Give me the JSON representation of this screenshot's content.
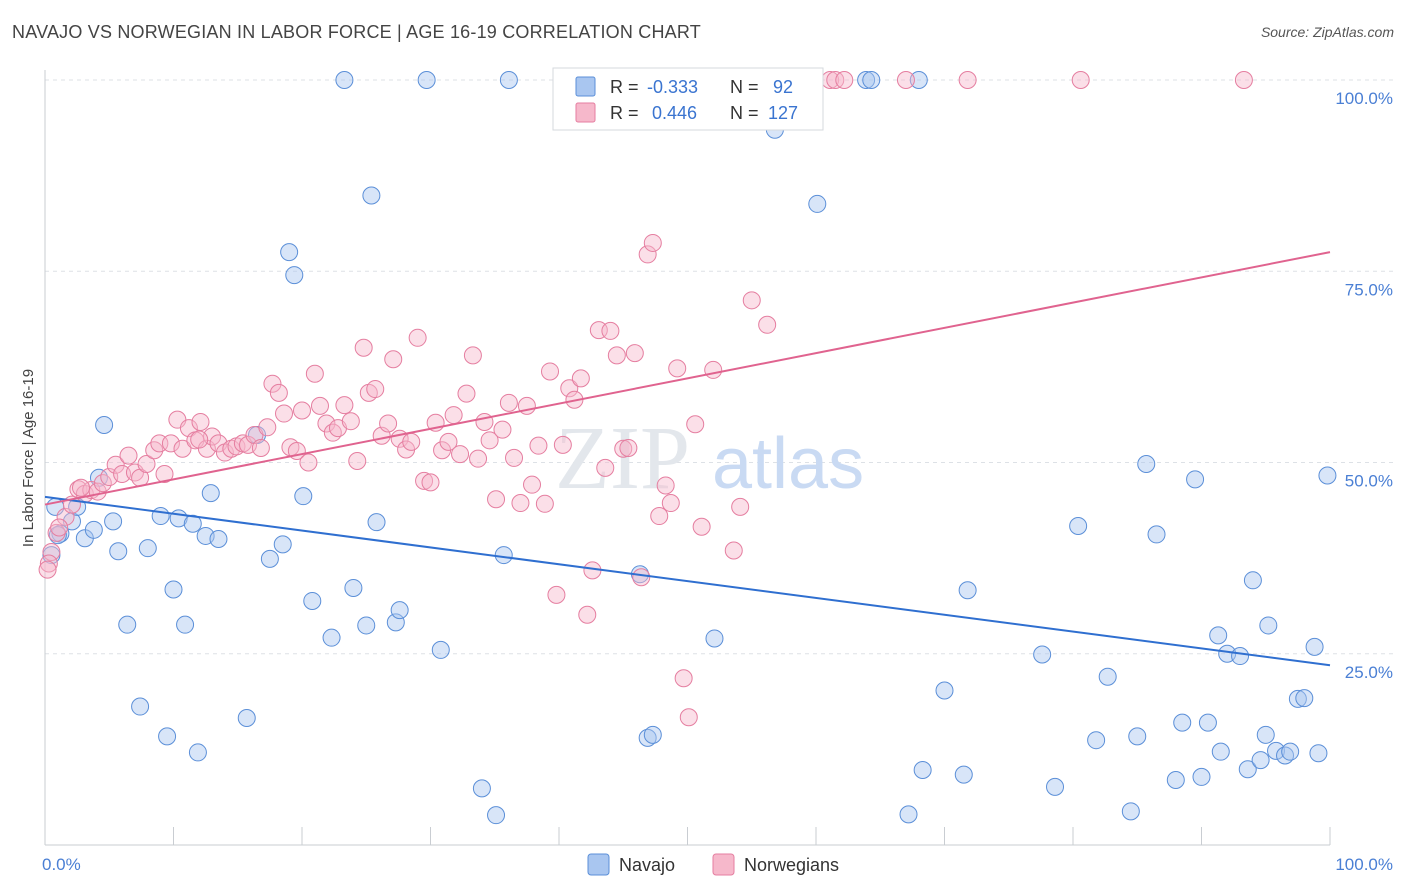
{
  "title": "NAVAJO VS NORWEGIAN IN LABOR FORCE | AGE 16-19 CORRELATION CHART",
  "source": "Source: ZipAtlas.com",
  "watermark": {
    "part1": "ZIP",
    "part2": "atlas"
  },
  "colors": {
    "navajo_fill": "#a9c6f0",
    "navajo_stroke": "#5b8fd8",
    "navajo_line": "#2f6fd0",
    "norw_fill": "#f6b8cb",
    "norw_stroke": "#e57ea0",
    "norw_line": "#e0638f",
    "tick": "#4a7fd4",
    "grid": "#dde1e6"
  },
  "legend": {
    "rows": [
      {
        "r_label": "R =",
        "r_value": "-0.333",
        "n_label": "N =",
        "n_value": "92"
      },
      {
        "r_label": "R =",
        "r_value": "0.446",
        "n_label": "N =",
        "n_value": "127"
      }
    ]
  },
  "bottom_legend": [
    "Navajo",
    "Norwegians"
  ],
  "chart_data": {
    "type": "scatter",
    "ylabel": "In Labor Force | Age 16-19",
    "xlim": [
      0,
      100
    ],
    "ylim": [
      0,
      100
    ],
    "x_tick_labels": [
      "0.0%",
      "100.0%"
    ],
    "y_ticks": [
      25,
      50,
      75,
      100
    ],
    "y_tick_labels": [
      "25.0%",
      "50.0%",
      "75.0%",
      "100.0%"
    ],
    "grid": true,
    "series": [
      {
        "name": "Navajo",
        "trend": [
          [
            0,
            45.5
          ],
          [
            100,
            23.5
          ]
        ],
        "points": [
          [
            0.5,
            37.9
          ],
          [
            0.8,
            44.2
          ],
          [
            1.2,
            40.7
          ],
          [
            2.1,
            42.3
          ],
          [
            2.5,
            44.2
          ],
          [
            3.1,
            40.1
          ],
          [
            3.8,
            41.2
          ],
          [
            4.2,
            48.0
          ],
          [
            4.6,
            54.9
          ],
          [
            5.3,
            42.3
          ],
          [
            5.7,
            38.4
          ],
          [
            6.4,
            28.8
          ],
          [
            7.4,
            18.1
          ],
          [
            8.0,
            38.8
          ],
          [
            9.0,
            43.0
          ],
          [
            9.5,
            14.2
          ],
          [
            10.0,
            33.4
          ],
          [
            10.4,
            42.7
          ],
          [
            10.9,
            28.8
          ],
          [
            11.5,
            42.0
          ],
          [
            11.9,
            12.1
          ],
          [
            12.5,
            40.4
          ],
          [
            12.9,
            46.0
          ],
          [
            13.5,
            40.0
          ],
          [
            15.7,
            16.6
          ],
          [
            16.5,
            53.6
          ],
          [
            17.5,
            37.4
          ],
          [
            18.5,
            39.3
          ],
          [
            19.0,
            77.5
          ],
          [
            19.4,
            74.5
          ],
          [
            20.1,
            45.6
          ],
          [
            20.8,
            31.9
          ],
          [
            22.3,
            27.1
          ],
          [
            23.3,
            100.0
          ],
          [
            24.0,
            33.6
          ],
          [
            25.0,
            28.7
          ],
          [
            25.4,
            84.9
          ],
          [
            25.8,
            42.2
          ],
          [
            27.3,
            29.1
          ],
          [
            27.6,
            30.7
          ],
          [
            30.8,
            25.5
          ],
          [
            34.0,
            7.4
          ],
          [
            35.1,
            3.9
          ],
          [
            35.7,
            37.9
          ],
          [
            36.1,
            100.0
          ],
          [
            29.7,
            100.0
          ],
          [
            46.3,
            35.4
          ],
          [
            46.9,
            14.0
          ],
          [
            47.3,
            14.4
          ],
          [
            52.1,
            27.0
          ],
          [
            56.8,
            93.5
          ],
          [
            60.1,
            83.8
          ],
          [
            63.9,
            100.0
          ],
          [
            64.3,
            100.0
          ],
          [
            67.2,
            4.0
          ],
          [
            68.0,
            100.0
          ],
          [
            68.3,
            9.8
          ],
          [
            70.0,
            20.2
          ],
          [
            71.5,
            9.2
          ],
          [
            71.8,
            33.3
          ],
          [
            77.6,
            24.9
          ],
          [
            78.6,
            7.6
          ],
          [
            80.4,
            41.7
          ],
          [
            81.8,
            13.7
          ],
          [
            82.7,
            22.0
          ],
          [
            84.5,
            4.4
          ],
          [
            85.0,
            14.2
          ],
          [
            85.7,
            49.8
          ],
          [
            86.5,
            40.6
          ],
          [
            88.0,
            8.5
          ],
          [
            88.5,
            16.0
          ],
          [
            89.5,
            47.8
          ],
          [
            90.0,
            8.9
          ],
          [
            90.5,
            16.0
          ],
          [
            91.5,
            12.2
          ],
          [
            91.3,
            27.4
          ],
          [
            92.0,
            25.0
          ],
          [
            93.0,
            24.7
          ],
          [
            93.6,
            9.9
          ],
          [
            94.0,
            34.6
          ],
          [
            94.6,
            11.1
          ],
          [
            95.2,
            28.7
          ],
          [
            95.0,
            14.4
          ],
          [
            95.8,
            12.3
          ],
          [
            96.5,
            11.7
          ],
          [
            96.9,
            12.2
          ],
          [
            97.5,
            19.1
          ],
          [
            98.0,
            19.2
          ],
          [
            98.8,
            25.9
          ],
          [
            99.1,
            12.0
          ],
          [
            99.8,
            48.3
          ],
          [
            1.0,
            40.5
          ]
        ]
      },
      {
        "name": "Norwegians",
        "trend": [
          [
            0,
            44.5
          ],
          [
            100,
            77.5
          ]
        ],
        "points": [
          [
            0.5,
            38.3
          ],
          [
            0.9,
            40.8
          ],
          [
            1.6,
            42.9
          ],
          [
            2.1,
            44.5
          ],
          [
            2.6,
            46.5
          ],
          [
            3.1,
            45.9
          ],
          [
            3.6,
            46.4
          ],
          [
            4.1,
            46.2
          ],
          [
            4.5,
            47.3
          ],
          [
            5.0,
            48.1
          ],
          [
            5.5,
            49.7
          ],
          [
            6.0,
            48.5
          ],
          [
            6.5,
            50.9
          ],
          [
            7.0,
            48.7
          ],
          [
            7.4,
            48.0
          ],
          [
            7.9,
            49.8
          ],
          [
            8.5,
            51.6
          ],
          [
            8.9,
            52.5
          ],
          [
            9.3,
            48.5
          ],
          [
            9.8,
            52.5
          ],
          [
            10.3,
            55.6
          ],
          [
            10.7,
            51.8
          ],
          [
            11.2,
            54.5
          ],
          [
            11.7,
            52.9
          ],
          [
            12.1,
            55.3
          ],
          [
            12.6,
            51.8
          ],
          [
            13.0,
            53.4
          ],
          [
            13.5,
            52.5
          ],
          [
            14.0,
            51.3
          ],
          [
            14.5,
            51.8
          ],
          [
            14.9,
            52.1
          ],
          [
            15.4,
            52.5
          ],
          [
            15.8,
            52.3
          ],
          [
            16.3,
            53.6
          ],
          [
            16.8,
            51.9
          ],
          [
            17.3,
            54.6
          ],
          [
            17.7,
            60.3
          ],
          [
            18.2,
            59.1
          ],
          [
            18.6,
            56.4
          ],
          [
            19.1,
            52.0
          ],
          [
            19.6,
            51.5
          ],
          [
            20.0,
            56.8
          ],
          [
            20.5,
            50.0
          ],
          [
            21.0,
            61.6
          ],
          [
            21.4,
            57.4
          ],
          [
            21.9,
            55.1
          ],
          [
            22.4,
            53.9
          ],
          [
            22.8,
            54.5
          ],
          [
            23.3,
            57.5
          ],
          [
            23.8,
            55.4
          ],
          [
            24.3,
            50.2
          ],
          [
            24.8,
            65.0
          ],
          [
            25.2,
            59.1
          ],
          [
            25.7,
            59.6
          ],
          [
            26.2,
            53.5
          ],
          [
            26.7,
            55.1
          ],
          [
            27.1,
            63.5
          ],
          [
            27.6,
            53.1
          ],
          [
            28.1,
            51.7
          ],
          [
            28.5,
            52.7
          ],
          [
            29.0,
            66.3
          ],
          [
            29.5,
            47.6
          ],
          [
            30.0,
            47.4
          ],
          [
            30.4,
            55.2
          ],
          [
            30.9,
            51.6
          ],
          [
            31.4,
            52.7
          ],
          [
            31.8,
            56.2
          ],
          [
            32.3,
            51.1
          ],
          [
            32.8,
            59.0
          ],
          [
            33.3,
            64.0
          ],
          [
            33.7,
            50.5
          ],
          [
            34.2,
            55.3
          ],
          [
            34.6,
            52.9
          ],
          [
            35.1,
            45.2
          ],
          [
            35.6,
            54.3
          ],
          [
            36.1,
            57.8
          ],
          [
            36.5,
            50.6
          ],
          [
            37.0,
            44.7
          ],
          [
            37.5,
            57.4
          ],
          [
            37.9,
            47.1
          ],
          [
            38.4,
            52.2
          ],
          [
            38.9,
            44.6
          ],
          [
            39.3,
            61.9
          ],
          [
            39.8,
            32.7
          ],
          [
            40.3,
            52.3
          ],
          [
            40.8,
            59.7
          ],
          [
            41.2,
            58.2
          ],
          [
            41.7,
            61.0
          ],
          [
            42.2,
            30.1
          ],
          [
            42.6,
            35.9
          ],
          [
            43.1,
            67.3
          ],
          [
            43.6,
            49.3
          ],
          [
            44.0,
            67.2
          ],
          [
            44.5,
            64.0
          ],
          [
            45.0,
            51.8
          ],
          [
            45.4,
            51.9
          ],
          [
            45.9,
            64.3
          ],
          [
            46.4,
            35.0
          ],
          [
            46.9,
            77.2
          ],
          [
            47.3,
            78.7
          ],
          [
            47.8,
            43.0
          ],
          [
            48.3,
            47.0
          ],
          [
            48.7,
            44.7
          ],
          [
            49.2,
            62.3
          ],
          [
            49.7,
            21.8
          ],
          [
            50.1,
            16.7
          ],
          [
            50.6,
            55.0
          ],
          [
            51.1,
            41.6
          ],
          [
            52.0,
            62.1
          ],
          [
            53.6,
            38.5
          ],
          [
            54.1,
            44.2
          ],
          [
            55.0,
            71.2
          ],
          [
            56.2,
            68.0
          ],
          [
            57.5,
            100.0
          ],
          [
            58.0,
            100.0
          ],
          [
            61.1,
            100.0
          ],
          [
            61.5,
            100.0
          ],
          [
            62.2,
            100.0
          ],
          [
            67.0,
            100.0
          ],
          [
            71.8,
            100.0
          ],
          [
            80.6,
            100.0
          ],
          [
            93.3,
            100.0
          ],
          [
            0.3,
            36.8
          ],
          [
            0.2,
            36.0
          ],
          [
            1.1,
            41.5
          ],
          [
            2.8,
            46.7
          ],
          [
            12.0,
            53.0
          ]
        ]
      }
    ]
  }
}
